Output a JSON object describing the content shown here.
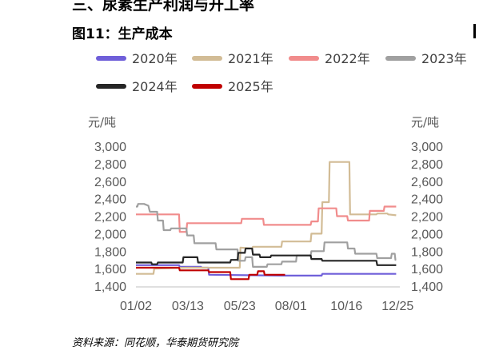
{
  "header": {
    "section_title": "三、尿素生产利润与开工率",
    "figure_title": "图11：生产成本"
  },
  "source_note": "资料来源：同花顺，华泰期货研究院",
  "chart_data": {
    "type": "line",
    "title": "图11：生产成本",
    "y_unit_left": "元/吨",
    "y_unit_right": "元/吨",
    "ylim": [
      1400,
      3000
    ],
    "yticks": [
      1400,
      1600,
      1800,
      2000,
      2200,
      2400,
      2600,
      2800,
      3000
    ],
    "ytick_labels": [
      "1,400",
      "1,600",
      "1,800",
      "2,000",
      "2,200",
      "2,400",
      "2,600",
      "2,800",
      "3,000"
    ],
    "xlim": [
      1,
      362
    ],
    "xticks": [
      1,
      72,
      143,
      213,
      289,
      359
    ],
    "xtick_labels": [
      "01/02",
      "03/13",
      "05/23",
      "08/01",
      "10/16",
      "12/25"
    ],
    "grid": false,
    "legend_position": "top",
    "series": [
      {
        "name": "2020年",
        "color": "#6f5fd9",
        "points": [
          [
            1,
            1640
          ],
          [
            60,
            1640
          ],
          [
            61,
            1620
          ],
          [
            90,
            1620
          ],
          [
            91,
            1610
          ],
          [
            100,
            1610
          ],
          [
            101,
            1530
          ],
          [
            200,
            1520
          ],
          [
            255,
            1520
          ],
          [
            256,
            1540
          ],
          [
            357,
            1540
          ]
        ]
      },
      {
        "name": "2021年",
        "color": "#d2bc96",
        "points": [
          [
            1,
            1540
          ],
          [
            25,
            1540
          ],
          [
            26,
            1600
          ],
          [
            70,
            1610
          ],
          [
            143,
            1610
          ],
          [
            144,
            1840
          ],
          [
            160,
            1830
          ],
          [
            161,
            1850
          ],
          [
            200,
            1850
          ],
          [
            201,
            1910
          ],
          [
            240,
            1910
          ],
          [
            241,
            2000
          ],
          [
            255,
            2000
          ],
          [
            256,
            2360
          ],
          [
            265,
            2360
          ],
          [
            266,
            2820
          ],
          [
            293,
            2820
          ],
          [
            294,
            2220
          ],
          [
            330,
            2220
          ],
          [
            331,
            2230
          ],
          [
            345,
            2230
          ],
          [
            346,
            2220
          ],
          [
            357,
            2210
          ]
        ]
      },
      {
        "name": "2022年",
        "color": "#f18c8c",
        "points": [
          [
            1,
            2220
          ],
          [
            60,
            2220
          ],
          [
            61,
            2020
          ],
          [
            70,
            2020
          ],
          [
            71,
            2120
          ],
          [
            145,
            2120
          ],
          [
            146,
            2170
          ],
          [
            175,
            2170
          ],
          [
            176,
            2100
          ],
          [
            240,
            2100
          ],
          [
            241,
            2140
          ],
          [
            250,
            2140
          ],
          [
            251,
            2290
          ],
          [
            275,
            2290
          ],
          [
            276,
            2200
          ],
          [
            290,
            2200
          ],
          [
            291,
            2150
          ],
          [
            320,
            2150
          ],
          [
            321,
            2260
          ],
          [
            340,
            2260
          ],
          [
            341,
            2310
          ],
          [
            357,
            2310
          ]
        ]
      },
      {
        "name": "2023年",
        "color": "#a0a0a0",
        "points": [
          [
            1,
            2310
          ],
          [
            3,
            2310
          ],
          [
            4,
            2340
          ],
          [
            12,
            2340
          ],
          [
            18,
            2320
          ],
          [
            20,
            2250
          ],
          [
            30,
            2250
          ],
          [
            31,
            2150
          ],
          [
            38,
            2150
          ],
          [
            39,
            2040
          ],
          [
            48,
            2040
          ],
          [
            49,
            2060
          ],
          [
            70,
            2060
          ],
          [
            71,
            1980
          ],
          [
            80,
            1980
          ],
          [
            81,
            1890
          ],
          [
            110,
            1890
          ],
          [
            111,
            1820
          ],
          [
            140,
            1820
          ],
          [
            141,
            1690
          ],
          [
            150,
            1690
          ],
          [
            151,
            1730
          ],
          [
            160,
            1730
          ],
          [
            161,
            1620
          ],
          [
            180,
            1620
          ],
          [
            181,
            1650
          ],
          [
            200,
            1650
          ],
          [
            201,
            1680
          ],
          [
            220,
            1680
          ],
          [
            221,
            1750
          ],
          [
            240,
            1750
          ],
          [
            241,
            1800
          ],
          [
            258,
            1800
          ],
          [
            259,
            1900
          ],
          [
            290,
            1900
          ],
          [
            291,
            1830
          ],
          [
            300,
            1830
          ],
          [
            301,
            1770
          ],
          [
            330,
            1770
          ],
          [
            331,
            1720
          ],
          [
            350,
            1720
          ],
          [
            351,
            1770
          ],
          [
            355,
            1770
          ],
          [
            356,
            1700
          ],
          [
            357,
            1700
          ]
        ]
      },
      {
        "name": "2024年",
        "color": "#262626",
        "points": [
          [
            1,
            1670
          ],
          [
            22,
            1670
          ],
          [
            23,
            1650
          ],
          [
            30,
            1650
          ],
          [
            31,
            1670
          ],
          [
            65,
            1670
          ],
          [
            66,
            1730
          ],
          [
            85,
            1730
          ],
          [
            86,
            1670
          ],
          [
            130,
            1670
          ],
          [
            131,
            1700
          ],
          [
            140,
            1700
          ],
          [
            141,
            1780
          ],
          [
            150,
            1780
          ],
          [
            151,
            1830
          ],
          [
            160,
            1830
          ],
          [
            161,
            1760
          ],
          [
            170,
            1760
          ],
          [
            171,
            1730
          ],
          [
            185,
            1730
          ],
          [
            186,
            1750
          ],
          [
            240,
            1750
          ],
          [
            241,
            1710
          ],
          [
            255,
            1710
          ],
          [
            256,
            1690
          ],
          [
            330,
            1690
          ],
          [
            331,
            1640
          ],
          [
            357,
            1640
          ]
        ]
      },
      {
        "name": "2025年",
        "color": "#c00000",
        "points": [
          [
            1,
            1610
          ],
          [
            60,
            1610
          ],
          [
            61,
            1580
          ],
          [
            100,
            1580
          ],
          [
            101,
            1560
          ],
          [
            130,
            1560
          ],
          [
            131,
            1480
          ],
          [
            155,
            1480
          ],
          [
            156,
            1530
          ],
          [
            167,
            1530
          ],
          [
            168,
            1570
          ],
          [
            176,
            1570
          ],
          [
            177,
            1530
          ],
          [
            205,
            1530
          ]
        ]
      }
    ]
  }
}
